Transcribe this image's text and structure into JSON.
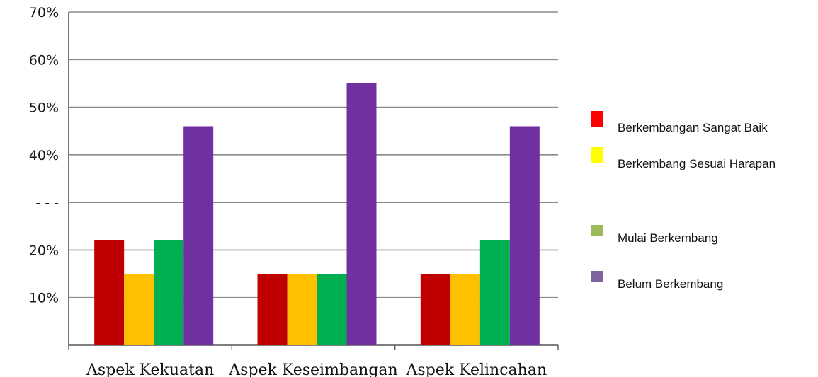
{
  "chart_data": {
    "type": "bar",
    "categories": [
      "Aspek Kekuatan",
      "Aspek Keseimbangan",
      "Aspek Kelincahan"
    ],
    "series": [
      {
        "name": "Berkembangan Sangat Baik",
        "values": [
          22,
          15,
          15
        ],
        "color": "#c00000"
      },
      {
        "name": "Berkembang Sesuai Harapan",
        "values": [
          15,
          15,
          15
        ],
        "color": "#ffc000"
      },
      {
        "name": "Mulai Berkembang",
        "values": [
          22,
          15,
          22
        ],
        "color": "#00b050"
      },
      {
        "name": "Belum Berkembang",
        "values": [
          46,
          55,
          46
        ],
        "color": "#7030a0"
      }
    ],
    "legend_colors": [
      "#ff0000",
      "#ffff00",
      "#9bbb59",
      "#8064a2"
    ],
    "ylim": [
      0,
      70
    ],
    "yticks": [
      "10%",
      "20%",
      "",
      "40%",
      "50%",
      "60%",
      "70%"
    ],
    "legend_position": "right",
    "grid": true
  }
}
